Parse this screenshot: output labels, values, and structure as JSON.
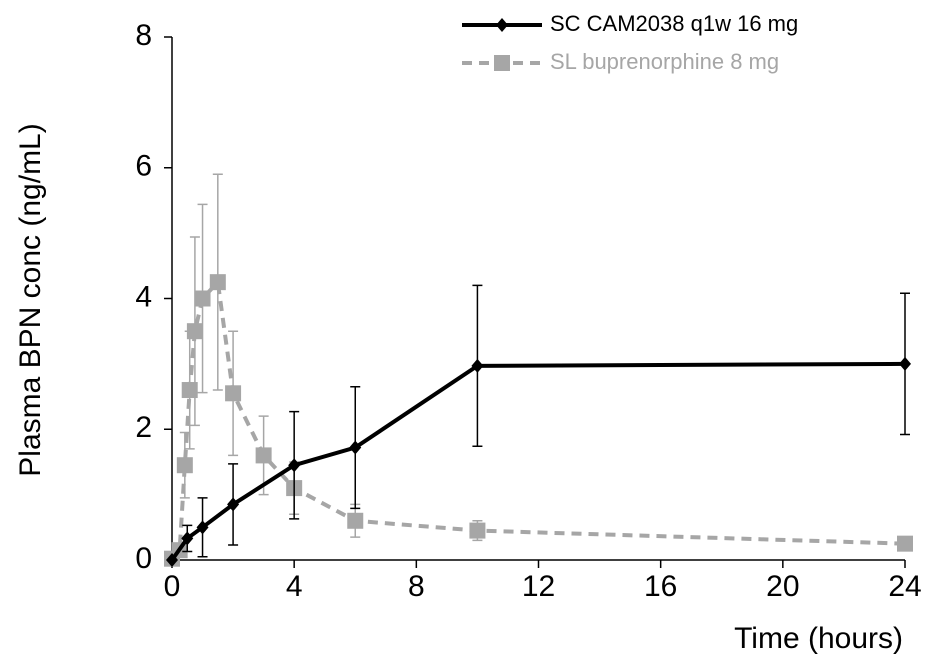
{
  "chart_data": {
    "type": "line",
    "xlabel": "Time (hours)",
    "ylabel": "Plasma BPN conc (ng/mL)",
    "xlim": [
      0,
      24
    ],
    "xticks": [
      0,
      4,
      8,
      12,
      16,
      20,
      24
    ],
    "ylim": [
      0,
      8
    ],
    "yticks": [
      0,
      2,
      4,
      6,
      8
    ],
    "legend": "upper right",
    "series": [
      {
        "name": "SC CAM2038 q1w 16 mg",
        "color": "#000000",
        "linestyle": "solid",
        "marker": "diamond",
        "x": [
          0,
          0.5,
          1,
          2,
          4,
          6,
          10,
          24
        ],
        "values": [
          0,
          0.33,
          0.5,
          0.85,
          1.45,
          1.72,
          2.97,
          3.0
        ],
        "errors": [
          0,
          0.2,
          0.45,
          0.62,
          0.82,
          0.93,
          1.23,
          1.08
        ]
      },
      {
        "name": "SL buprenorphine 8 mg",
        "color": "#a6a6a6",
        "linestyle": "dashed",
        "marker": "square",
        "x": [
          0,
          0.25,
          0.42,
          0.58,
          0.75,
          1,
          1.5,
          2,
          3,
          4,
          6,
          10,
          24
        ],
        "values": [
          0.02,
          0.15,
          1.45,
          2.6,
          3.5,
          4.0,
          4.25,
          2.55,
          1.6,
          1.1,
          0.6,
          0.45,
          0.25
        ],
        "errors": [
          0.02,
          0.1,
          0.5,
          0.9,
          1.44,
          1.44,
          1.65,
          0.95,
          0.6,
          0.4,
          0.25,
          0.15,
          0.1
        ]
      }
    ]
  }
}
